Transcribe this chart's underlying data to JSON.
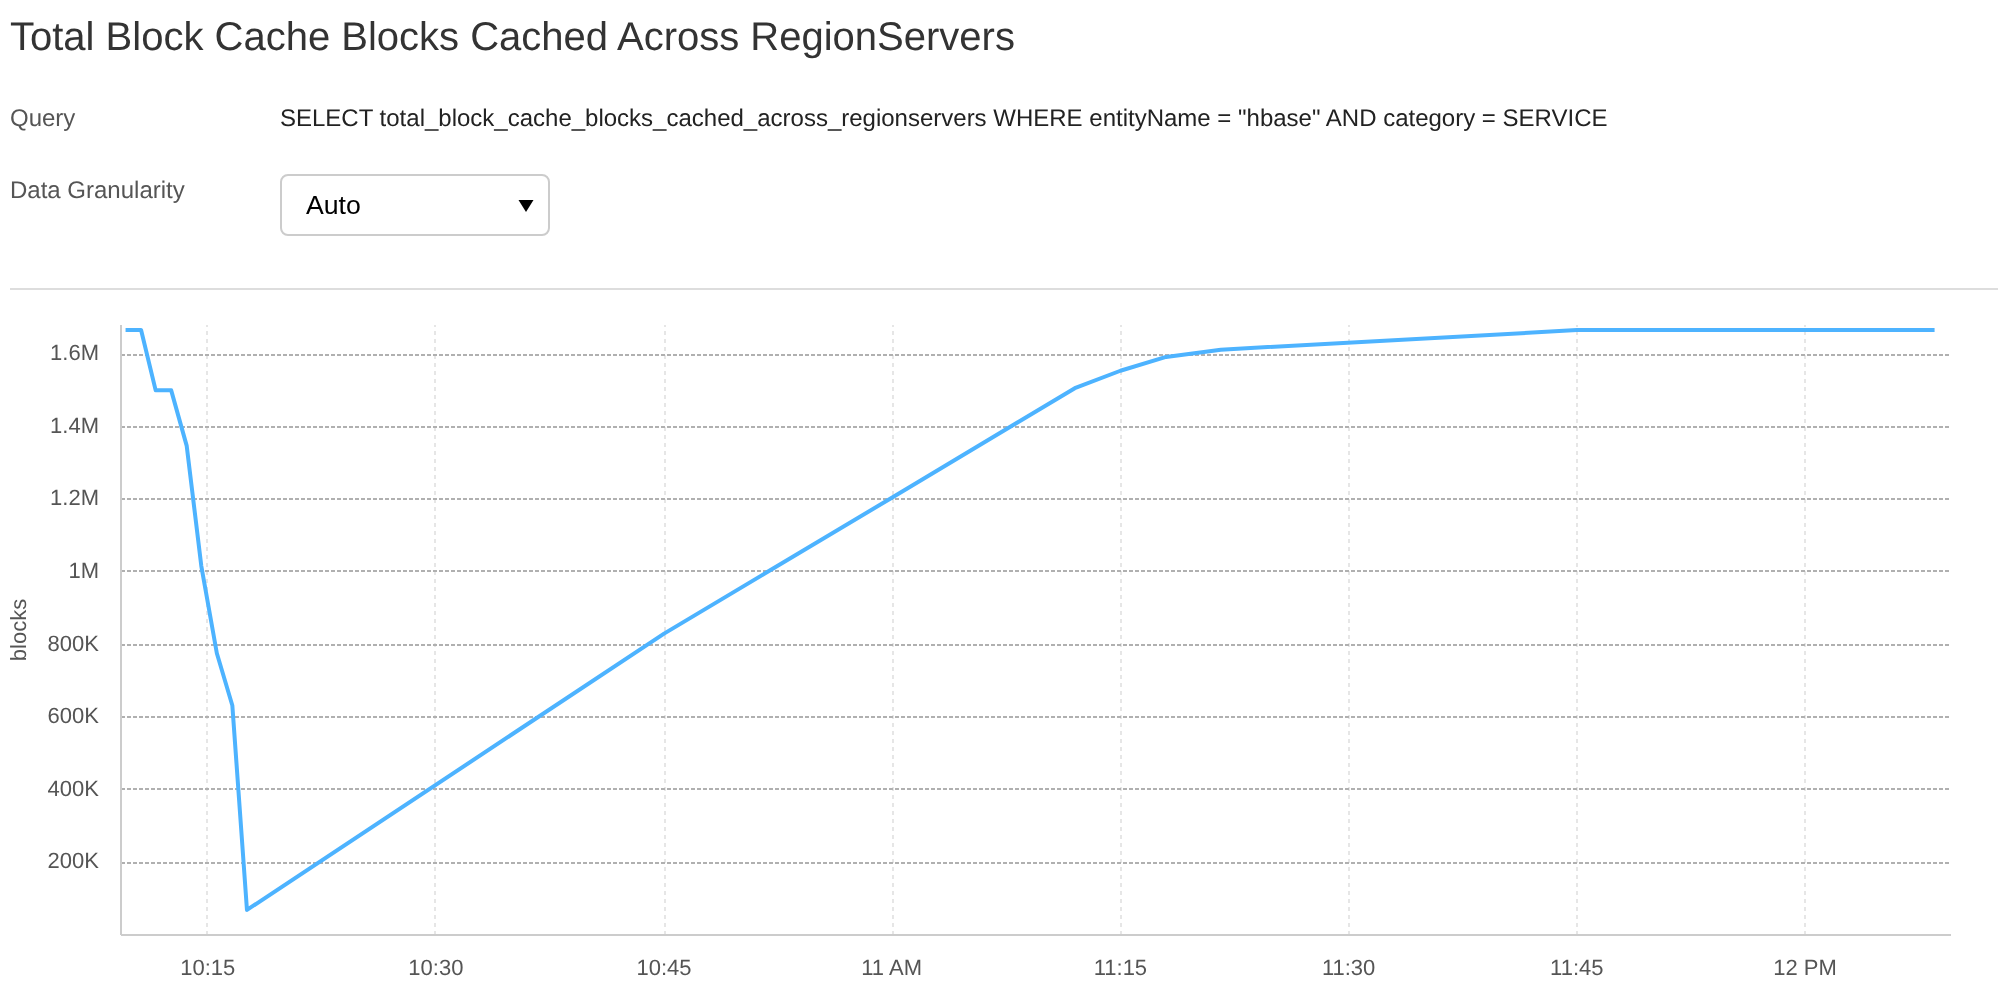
{
  "chart_data": {
    "type": "line",
    "title": "Total Block Cache Blocks Cached Across RegionServers",
    "annotations": [
      "Query",
      "SELECT total_block_cache_blocks_cached_across_regionservers WHERE entityName = \"hbase\" AND category = SERVICE",
      "Data Granularity",
      "Auto"
    ],
    "ylabel": "blocks",
    "x": [
      10.16,
      10.177,
      10.193,
      10.21,
      10.227,
      10.243,
      10.26,
      10.277,
      10.293,
      10.75,
      11.0,
      11.2,
      11.25,
      11.3,
      11.36,
      11.75,
      12.142
    ],
    "series": [
      {
        "color": "#4db3ff",
        "values": [
          1666000,
          1666000,
          1500000,
          1500000,
          1347000,
          1016000,
          776000,
          632000,
          69000,
          830000,
          1205000,
          1506000,
          1554000,
          1592000,
          1612000,
          1666000,
          1666000
        ]
      }
    ],
    "xlim": [
      10.155,
      12.16
    ],
    "xticks": [
      {
        "value": 10.25,
        "label": "10:15"
      },
      {
        "value": 10.5,
        "label": "10:30"
      },
      {
        "value": 10.75,
        "label": "10:45"
      },
      {
        "value": 11,
        "label": "11 AM"
      },
      {
        "value": 11.25,
        "label": "11:15"
      },
      {
        "value": 11.5,
        "label": "11:30"
      },
      {
        "value": 11.75,
        "label": "11:45"
      },
      {
        "value": 12,
        "label": "12 PM"
      }
    ],
    "ylim": [
      0,
      1680000
    ],
    "yticks": [
      {
        "value": 200000,
        "label": "200K"
      },
      {
        "value": 400000,
        "label": "400K"
      },
      {
        "value": 600000,
        "label": "600K"
      },
      {
        "value": 800000,
        "label": "800K"
      },
      {
        "value": 1000000,
        "label": "1M"
      },
      {
        "value": 1200000,
        "label": "1.2M"
      },
      {
        "value": 1400000,
        "label": "1.4M"
      },
      {
        "value": 1600000,
        "label": "1.6M"
      }
    ],
    "grid": true,
    "marker": "none",
    "line_style": "solid"
  }
}
